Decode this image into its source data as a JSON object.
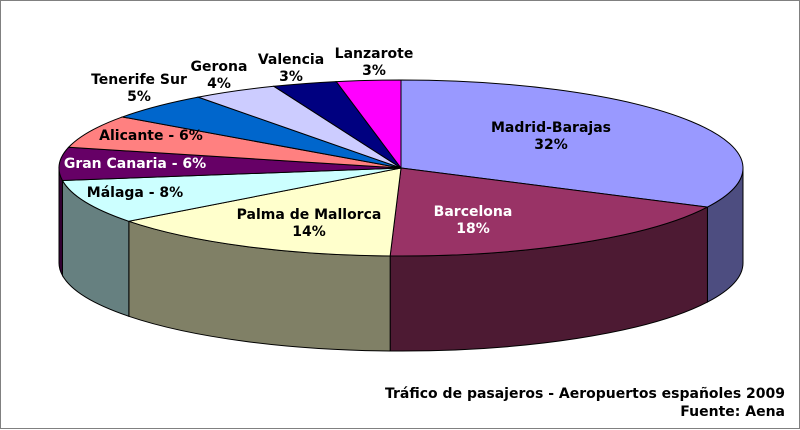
{
  "chart_data": {
    "type": "pie",
    "three_d": true,
    "title": "Tráfico de pasajeros - Aeropuertos españoles 2009",
    "source": "Fuente: Aena",
    "legend": "none",
    "slices": [
      {
        "label": "Madrid-Barajas",
        "value": 32,
        "value_label": "32%",
        "inline": false,
        "color": "#9999FF",
        "label_color": "#000000"
      },
      {
        "label": "Barcelona",
        "value": 18,
        "value_label": "18%",
        "inline": false,
        "color": "#993366",
        "label_color": "#FFFFFF"
      },
      {
        "label": "Palma de Mallorca",
        "value": 14,
        "value_label": "14%",
        "inline": false,
        "color": "#FFFFCC",
        "label_color": "#000000"
      },
      {
        "label": "Málaga",
        "value": 8,
        "value_label": "8%",
        "inline": true,
        "color": "#CCFFFF",
        "label_color": "#000000"
      },
      {
        "label": "Gran Canaria",
        "value": 6,
        "value_label": "6%",
        "inline": true,
        "color": "#660066",
        "label_color": "#FFFFFF"
      },
      {
        "label": "Alicante",
        "value": 6,
        "value_label": "6%",
        "inline": true,
        "color": "#FF8080",
        "label_color": "#000000"
      },
      {
        "label": "Tenerife Sur",
        "value": 5,
        "value_label": "5%",
        "inline": false,
        "color": "#0066CC",
        "label_color": "#000000"
      },
      {
        "label": "Gerona",
        "value": 4,
        "value_label": "4%",
        "inline": false,
        "color": "#CCCCFF",
        "label_color": "#000000"
      },
      {
        "label": "Valencia",
        "value": 3,
        "value_label": "3%",
        "inline": false,
        "color": "#000080",
        "label_color": "#000000"
      },
      {
        "label": "Lanzarote",
        "value": 3,
        "value_label": "3%",
        "inline": false,
        "color": "#FF00FF",
        "label_color": "#000000"
      }
    ]
  }
}
